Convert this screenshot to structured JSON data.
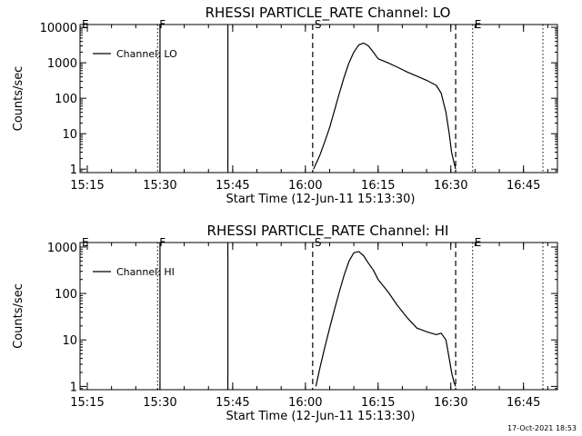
{
  "footer": {
    "timestamp": "17-Oct-2021 18:53"
  },
  "chart_data": [
    {
      "type": "line",
      "title": "RHESSI PARTICLE_RATE Channel: LO",
      "xlabel": "Start Time (12-Jun-11 15:13:30)",
      "ylabel": "Counts/sec",
      "yscale": "log",
      "xlim": [
        "15:13:30",
        "16:52:00"
      ],
      "ylim": [
        0.8,
        12000
      ],
      "xticks": [
        "15:15",
        "15:30",
        "15:45",
        "16:00",
        "16:15",
        "16:30",
        "16:45"
      ],
      "yticks": [
        {
          "value": 1,
          "label": "1"
        },
        {
          "value": 10,
          "label": "10"
        },
        {
          "value": 100,
          "label": "100"
        },
        {
          "value": 1000,
          "label": "1000"
        },
        {
          "value": 10000,
          "label": "10000"
        }
      ],
      "legend": {
        "position": "top-left",
        "entries": [
          "Channel: LO"
        ]
      },
      "markers": [
        {
          "label": "E",
          "time": "15:13:30",
          "style": "dotted"
        },
        {
          "label": "F",
          "time": "15:29:30",
          "style": "dotted"
        },
        {
          "label": "",
          "time": "15:30:00",
          "style": "solid"
        },
        {
          "label": "",
          "time": "15:44:00",
          "style": "solid"
        },
        {
          "label": "S",
          "time": "16:01:30",
          "style": "dashed"
        },
        {
          "label": "",
          "time": "16:31:00",
          "style": "dashed"
        },
        {
          "label": "E",
          "time": "16:34:30",
          "style": "dotted"
        },
        {
          "label": "",
          "time": "16:49:00",
          "style": "dotted"
        }
      ],
      "series": [
        {
          "name": "Channel: LO",
          "x": [
            "16:01:40",
            "16:03:00",
            "16:04:00",
            "16:05:00",
            "16:06:00",
            "16:07:00",
            "16:08:00",
            "16:09:00",
            "16:10:00",
            "16:11:00",
            "16:12:00",
            "16:13:00",
            "16:14:00",
            "16:15:00",
            "16:17:00",
            "16:19:00",
            "16:21:00",
            "16:23:00",
            "16:25:00",
            "16:27:00",
            "16:28:00",
            "16:29:00",
            "16:29:40",
            "16:30:10",
            "16:30:40",
            "16:31:00"
          ],
          "values": [
            1,
            2.5,
            6,
            15,
            45,
            140,
            400,
            1000,
            2000,
            3200,
            3600,
            3000,
            2000,
            1300,
            1000,
            750,
            550,
            420,
            320,
            230,
            140,
            40,
            10,
            3,
            1.5,
            1
          ]
        }
      ]
    },
    {
      "type": "line",
      "title": "RHESSI PARTICLE_RATE Channel: HI",
      "xlabel": "Start Time (12-Jun-11 15:13:30)",
      "ylabel": "Counts/sec",
      "yscale": "log",
      "xlim": [
        "15:13:30",
        "16:52:00"
      ],
      "ylim": [
        0.85,
        1250
      ],
      "xticks": [
        "15:15",
        "15:30",
        "15:45",
        "16:00",
        "16:15",
        "16:30",
        "16:45"
      ],
      "yticks": [
        {
          "value": 1,
          "label": "1"
        },
        {
          "value": 10,
          "label": "10"
        },
        {
          "value": 100,
          "label": "100"
        },
        {
          "value": 1000,
          "label": "1000"
        }
      ],
      "legend": {
        "position": "top-left",
        "entries": [
          "Channel: HI"
        ]
      },
      "markers": [
        {
          "label": "E",
          "time": "15:13:30",
          "style": "dotted"
        },
        {
          "label": "F",
          "time": "15:29:30",
          "style": "dotted"
        },
        {
          "label": "",
          "time": "15:30:00",
          "style": "solid"
        },
        {
          "label": "",
          "time": "15:44:00",
          "style": "solid"
        },
        {
          "label": "S",
          "time": "16:01:30",
          "style": "dashed"
        },
        {
          "label": "",
          "time": "16:31:00",
          "style": "dashed"
        },
        {
          "label": "E",
          "time": "16:34:30",
          "style": "dotted"
        },
        {
          "label": "",
          "time": "16:49:00",
          "style": "dotted"
        }
      ],
      "series": [
        {
          "name": "Channel: HI",
          "x": [
            "16:02:10",
            "16:03:00",
            "16:04:00",
            "16:05:00",
            "16:06:00",
            "16:07:00",
            "16:08:00",
            "16:09:00",
            "16:10:00",
            "16:11:00",
            "16:12:00",
            "16:13:00",
            "16:14:00",
            "16:15:00",
            "16:17:00",
            "16:19:00",
            "16:21:00",
            "16:23:00",
            "16:25:00",
            "16:27:00",
            "16:28:00",
            "16:29:00",
            "16:29:40",
            "16:30:10",
            "16:30:40",
            "16:31:00"
          ],
          "values": [
            1,
            2.5,
            7,
            18,
            45,
            110,
            250,
            500,
            750,
            800,
            650,
            450,
            320,
            200,
            110,
            55,
            30,
            18,
            15,
            13,
            14,
            10,
            4,
            2,
            1.2,
            1
          ]
        }
      ]
    }
  ]
}
